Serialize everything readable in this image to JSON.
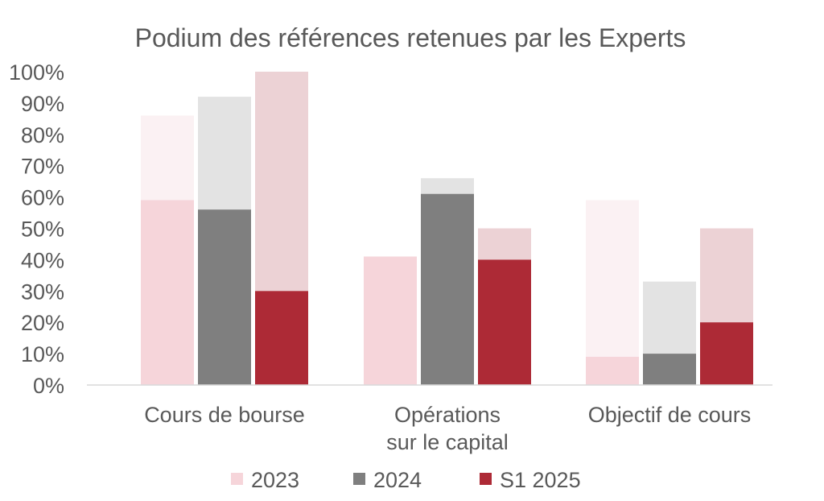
{
  "chart_data": {
    "type": "bar",
    "title": "Podium des références retenues par les Experts",
    "categories": [
      [
        "Cours de bourse"
      ],
      [
        "Opérations",
        "sur le capital"
      ],
      [
        "Objectif de cours"
      ]
    ],
    "y_ticks": [
      "0%",
      "10%",
      "20%",
      "30%",
      "40%",
      "50%",
      "60%",
      "70%",
      "80%",
      "90%",
      "100%"
    ],
    "ylim": [
      0,
      100
    ],
    "grid": false,
    "legend_position": "bottom",
    "series": [
      {
        "name": "2023",
        "color": "#f6d5da",
        "light_color": "#fbf1f3",
        "values": [
          59,
          41,
          9
        ],
        "totals": [
          86,
          41,
          59
        ]
      },
      {
        "name": "2024",
        "color": "#7f7f7f",
        "light_color": "#e3e3e3",
        "values": [
          56,
          61,
          10
        ],
        "totals": [
          92,
          66,
          33
        ]
      },
      {
        "name": "S1 2025",
        "color": "#ad2a36",
        "light_color": "#ecd2d5",
        "values": [
          30,
          40,
          20
        ],
        "totals": [
          100,
          50,
          50
        ]
      }
    ]
  }
}
